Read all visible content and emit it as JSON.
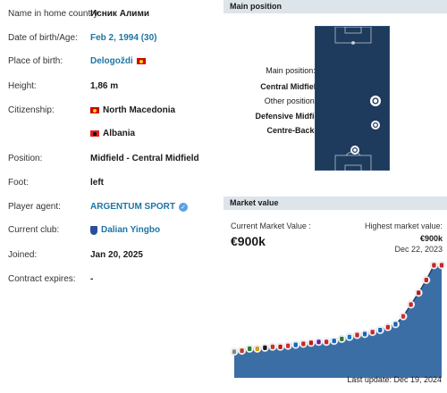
{
  "profile": {
    "rows": [
      {
        "key": "home_name",
        "label": "Name in home country:",
        "value": "Исник Алими",
        "style": "plain"
      },
      {
        "key": "dob",
        "label": "Date of birth/Age:",
        "value": "Feb 2, 1994 (30)",
        "style": "link"
      },
      {
        "key": "pob",
        "label": "Place of birth:",
        "value": "Delogoždi",
        "style": "link",
        "flag": "mk"
      },
      {
        "key": "height",
        "label": "Height:",
        "value": "1,86 m",
        "style": "plain"
      },
      {
        "key": "citizenship",
        "label": "Citizenship:",
        "value": "North Macedonia",
        "style": "plain",
        "flag": "mk"
      },
      {
        "key": "citizenship2",
        "label": "",
        "value": "Albania",
        "style": "plain",
        "flag": "al"
      },
      {
        "key": "position",
        "label": "Position:",
        "value": "Midfield - Central Midfield",
        "style": "plain"
      },
      {
        "key": "foot",
        "label": "Foot:",
        "value": "left",
        "style": "plain"
      },
      {
        "key": "agent",
        "label": "Player agent:",
        "value": "ARGENTUM SPORT",
        "style": "link",
        "verified": true
      },
      {
        "key": "club",
        "label": "Current club:",
        "value": "Dalian Yingbo",
        "style": "link",
        "club_logo": true
      },
      {
        "key": "joined",
        "label": "Joined:",
        "value": "Jan 20, 2025",
        "style": "plain"
      },
      {
        "key": "contract",
        "label": "Contract expires:",
        "value": "-",
        "style": "plain"
      }
    ]
  },
  "main_position": {
    "header": "Main position",
    "main_label": "Main position:",
    "main_value": "Central Midfield",
    "other_label": "Other position:",
    "other_values": [
      "Defensive Midfield",
      "Centre-Back"
    ]
  },
  "market_value": {
    "header": "Market value",
    "current_label": "Current Market Value :",
    "current_value": "€900k",
    "highest_label": "Highest market value:",
    "highest_value": "€900k",
    "highest_date": "Dec 22, 2023",
    "last_update": "Last update: Dec 19, 2024",
    "colors": {
      "line": "#1d3f66",
      "fill": "#3b6ea5",
      "point": "#ffffff"
    }
  },
  "chart_data": {
    "type": "area",
    "title": "",
    "xlabel": "",
    "ylabel": "",
    "y_values": [
      0.02,
      0.03,
      0.05,
      0.05,
      0.06,
      0.07,
      0.07,
      0.08,
      0.09,
      0.1,
      0.11,
      0.12,
      0.12,
      0.13,
      0.15,
      0.17,
      0.19,
      0.2,
      0.22,
      0.24,
      0.27,
      0.3,
      0.38,
      0.5,
      0.62,
      0.75,
      0.9,
      0.9
    ],
    "ylim": [
      0,
      1.0
    ],
    "grid": false,
    "point_club_colors": [
      "#888888",
      "#c0392b",
      "#2e7d32",
      "#d4a017",
      "#1a1a1a",
      "#c0392b",
      "#b71c1c",
      "#d32f2f",
      "#1565c0",
      "#c62828",
      "#b71c1c",
      "#6a1b9a",
      "#c62828",
      "#1565c0",
      "#2e7d32",
      "#1976d2",
      "#c62828",
      "#1565c0",
      "#c62828",
      "#1565c0",
      "#c62828",
      "#1565c0",
      "#d32f2f",
      "#c62828",
      "#b71c1c",
      "#c62828",
      "#c62828",
      "#c62828"
    ]
  }
}
